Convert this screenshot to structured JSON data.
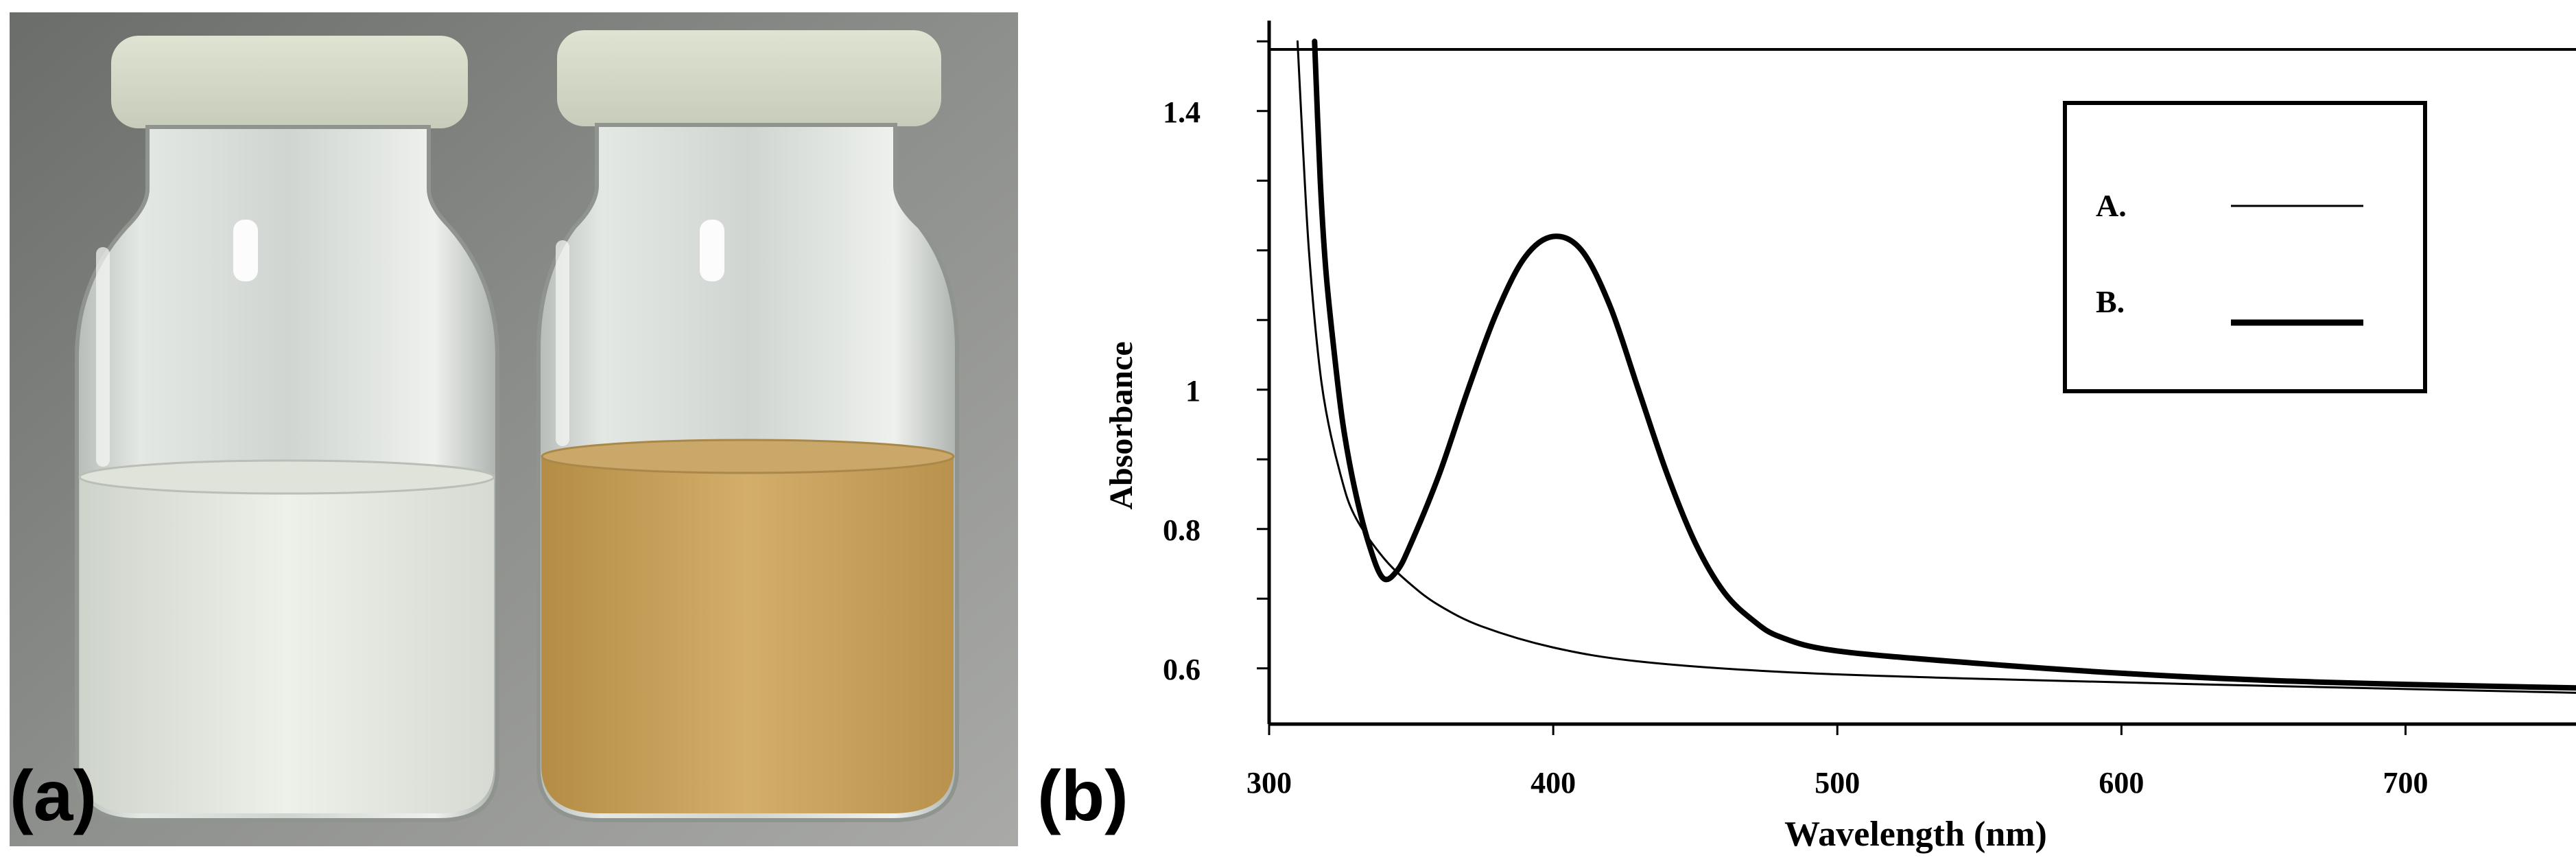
{
  "panel_labels": {
    "a": "(a)",
    "b": "(b)"
  },
  "photo": {
    "vial_left": {
      "liquid_color": "#e6e9e0"
    },
    "vial_right": {
      "liquid_color": "#c9a35c"
    }
  },
  "chart_data": {
    "type": "line",
    "xlabel": "Wavelength (nm)",
    "ylabel": "Absorbance",
    "xlim": [
      300,
      760
    ],
    "ylim": [
      0.52,
      1.52
    ],
    "x_ticks": [
      300,
      400,
      500,
      600,
      700
    ],
    "x_tick_labels": [
      "300",
      "400",
      "500",
      "600",
      "700"
    ],
    "y_ticks": [
      0.6,
      0.8,
      1,
      1.4
    ],
    "y_tick_labels": [
      "0.6",
      "0.8",
      "1",
      "1.4"
    ],
    "y_minor_ticks": [
      0.6,
      0.7,
      0.8,
      0.9,
      1.0,
      1.1,
      1.2,
      1.3,
      1.4,
      1.5
    ],
    "grid": false,
    "legend_position": "top-right",
    "series": [
      {
        "name": "A.",
        "style": "thin",
        "color": "#000000",
        "points": [
          [
            310,
            1.5
          ],
          [
            312,
            1.34
          ],
          [
            314,
            1.2
          ],
          [
            317,
            1.06
          ],
          [
            320,
            0.97
          ],
          [
            325,
            0.88
          ],
          [
            330,
            0.82
          ],
          [
            340,
            0.76
          ],
          [
            350,
            0.72
          ],
          [
            360,
            0.69
          ],
          [
            375,
            0.66
          ],
          [
            400,
            0.63
          ],
          [
            430,
            0.61
          ],
          [
            480,
            0.595
          ],
          [
            550,
            0.585
          ],
          [
            650,
            0.575
          ],
          [
            760,
            0.565
          ]
        ]
      },
      {
        "name": "B.",
        "style": "thick",
        "color": "#000000",
        "points": [
          [
            316,
            1.5
          ],
          [
            318,
            1.3
          ],
          [
            320,
            1.17
          ],
          [
            323,
            1.05
          ],
          [
            326,
            0.95
          ],
          [
            330,
            0.86
          ],
          [
            335,
            0.78
          ],
          [
            340,
            0.73
          ],
          [
            345,
            0.74
          ],
          [
            350,
            0.78
          ],
          [
            360,
            0.88
          ],
          [
            370,
            1.0
          ],
          [
            380,
            1.11
          ],
          [
            390,
            1.19
          ],
          [
            400,
            1.22
          ],
          [
            410,
            1.2
          ],
          [
            420,
            1.12
          ],
          [
            430,
            1.0
          ],
          [
            440,
            0.88
          ],
          [
            450,
            0.78
          ],
          [
            460,
            0.71
          ],
          [
            470,
            0.67
          ],
          [
            480,
            0.645
          ],
          [
            500,
            0.625
          ],
          [
            550,
            0.607
          ],
          [
            600,
            0.593
          ],
          [
            650,
            0.583
          ],
          [
            700,
            0.577
          ],
          [
            760,
            0.572
          ]
        ]
      }
    ]
  }
}
